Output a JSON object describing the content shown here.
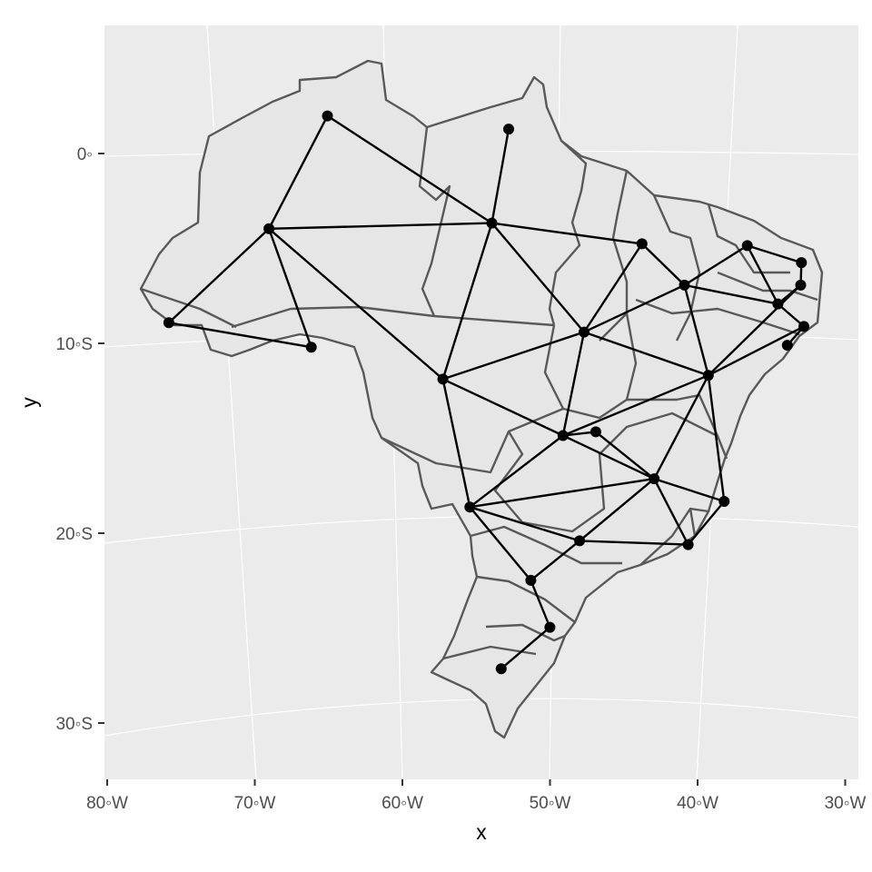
{
  "plot": {
    "xlabel": "x",
    "ylabel": "y",
    "x_ticks": [
      {
        "lon": -80,
        "label": "80◦W"
      },
      {
        "lon": -70,
        "label": "70◦W"
      },
      {
        "lon": -60,
        "label": "60◦W"
      },
      {
        "lon": -50,
        "label": "50◦W"
      },
      {
        "lon": -40,
        "label": "40◦W"
      },
      {
        "lon": -30,
        "label": "30◦W"
      }
    ],
    "y_ticks": [
      {
        "lat": 0,
        "label": "0◦"
      },
      {
        "lat": -10,
        "label": "10◦S"
      },
      {
        "lat": -20,
        "label": "20◦S"
      },
      {
        "lat": -30,
        "label": "30◦S"
      }
    ],
    "colors": {
      "panel": "#ebebeb",
      "grid": "#ffffff",
      "land": "#e6e6e6",
      "border": "#595959",
      "network": "#000000"
    }
  },
  "map_data": {
    "region": "Brazil",
    "nodes": [
      {
        "lon": -63.0,
        "lat": 2.0
      },
      {
        "lon": -51.5,
        "lat": 1.3
      },
      {
        "lon": -67.0,
        "lat": -4.0
      },
      {
        "lon": -52.8,
        "lat": -3.7
      },
      {
        "lon": -43.3,
        "lat": -4.8
      },
      {
        "lon": -36.6,
        "lat": -4.9
      },
      {
        "lon": -33.2,
        "lat": -5.8
      },
      {
        "lon": -33.3,
        "lat": -7.0
      },
      {
        "lon": -40.7,
        "lat": -7.0
      },
      {
        "lon": -34.8,
        "lat": -8.0
      },
      {
        "lon": -33.2,
        "lat": -9.2
      },
      {
        "lon": -34.3,
        "lat": -10.2
      },
      {
        "lon": -73.6,
        "lat": -9.0
      },
      {
        "lon": -64.6,
        "lat": -10.3
      },
      {
        "lon": -47.2,
        "lat": -9.5
      },
      {
        "lon": -56.3,
        "lat": -12.0
      },
      {
        "lon": -39.4,
        "lat": -11.8
      },
      {
        "lon": -48.8,
        "lat": -15.0
      },
      {
        "lon": -46.7,
        "lat": -14.8
      },
      {
        "lon": -43.1,
        "lat": -17.3
      },
      {
        "lon": -38.7,
        "lat": -18.5
      },
      {
        "lon": -54.9,
        "lat": -18.8
      },
      {
        "lon": -48.0,
        "lat": -20.6
      },
      {
        "lon": -41.1,
        "lat": -20.8
      },
      {
        "lon": -51.2,
        "lat": -22.7
      },
      {
        "lon": -50.1,
        "lat": -25.2
      },
      {
        "lon": -53.3,
        "lat": -27.4
      }
    ],
    "edges": [
      [
        0,
        2
      ],
      [
        0,
        3
      ],
      [
        1,
        3
      ],
      [
        2,
        3
      ],
      [
        2,
        12
      ],
      [
        2,
        13
      ],
      [
        2,
        15
      ],
      [
        12,
        13
      ],
      [
        3,
        4
      ],
      [
        3,
        14
      ],
      [
        3,
        15
      ],
      [
        4,
        14
      ],
      [
        4,
        8
      ],
      [
        5,
        6
      ],
      [
        5,
        9
      ],
      [
        5,
        8
      ],
      [
        6,
        7
      ],
      [
        7,
        9
      ],
      [
        8,
        9
      ],
      [
        9,
        10
      ],
      [
        10,
        16
      ],
      [
        10,
        11
      ],
      [
        7,
        16
      ],
      [
        8,
        14
      ],
      [
        8,
        16
      ],
      [
        14,
        16
      ],
      [
        14,
        15
      ],
      [
        14,
        17
      ],
      [
        15,
        17
      ],
      [
        15,
        21
      ],
      [
        16,
        17
      ],
      [
        16,
        19
      ],
      [
        16,
        20
      ],
      [
        17,
        18
      ],
      [
        17,
        19
      ],
      [
        17,
        21
      ],
      [
        18,
        19
      ],
      [
        19,
        20
      ],
      [
        19,
        21
      ],
      [
        19,
        22
      ],
      [
        19,
        23
      ],
      [
        20,
        23
      ],
      [
        21,
        22
      ],
      [
        21,
        24
      ],
      [
        22,
        23
      ],
      [
        22,
        24
      ],
      [
        24,
        25
      ],
      [
        25,
        26
      ]
    ]
  }
}
